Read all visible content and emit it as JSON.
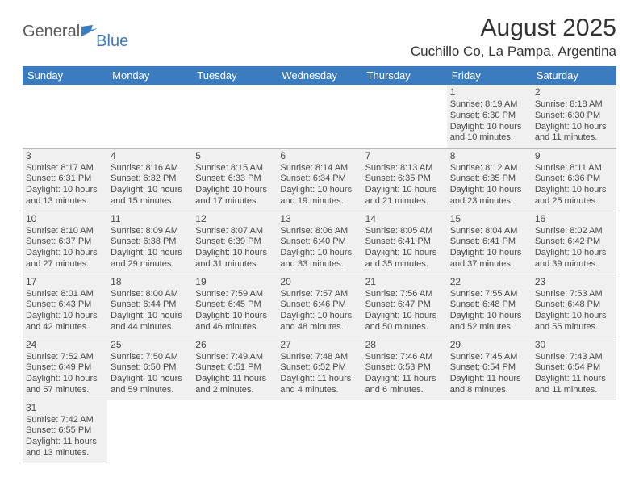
{
  "logo": {
    "general": "General",
    "blue": "Blue"
  },
  "title": "August 2025",
  "location": "Cuchillo Co, La Pampa, Argentina",
  "style": {
    "header_bg": "#3b7bbf",
    "header_fg": "#ffffff",
    "cell_bg": "#f0f0f0",
    "border_color": "#b8b8b8",
    "text_color": "#4a4a4a",
    "title_fontsize": 30,
    "location_fontsize": 17,
    "dayheader_fontsize": 13,
    "cell_fontsize": 11
  },
  "day_headers": [
    "Sunday",
    "Monday",
    "Tuesday",
    "Wednesday",
    "Thursday",
    "Friday",
    "Saturday"
  ],
  "weeks": [
    [
      null,
      null,
      null,
      null,
      null,
      {
        "n": "1",
        "sr": "Sunrise: 8:19 AM",
        "ss": "Sunset: 6:30 PM",
        "d1": "Daylight: 10 hours",
        "d2": "and 10 minutes."
      },
      {
        "n": "2",
        "sr": "Sunrise: 8:18 AM",
        "ss": "Sunset: 6:30 PM",
        "d1": "Daylight: 10 hours",
        "d2": "and 11 minutes."
      }
    ],
    [
      {
        "n": "3",
        "sr": "Sunrise: 8:17 AM",
        "ss": "Sunset: 6:31 PM",
        "d1": "Daylight: 10 hours",
        "d2": "and 13 minutes."
      },
      {
        "n": "4",
        "sr": "Sunrise: 8:16 AM",
        "ss": "Sunset: 6:32 PM",
        "d1": "Daylight: 10 hours",
        "d2": "and 15 minutes."
      },
      {
        "n": "5",
        "sr": "Sunrise: 8:15 AM",
        "ss": "Sunset: 6:33 PM",
        "d1": "Daylight: 10 hours",
        "d2": "and 17 minutes."
      },
      {
        "n": "6",
        "sr": "Sunrise: 8:14 AM",
        "ss": "Sunset: 6:34 PM",
        "d1": "Daylight: 10 hours",
        "d2": "and 19 minutes."
      },
      {
        "n": "7",
        "sr": "Sunrise: 8:13 AM",
        "ss": "Sunset: 6:35 PM",
        "d1": "Daylight: 10 hours",
        "d2": "and 21 minutes."
      },
      {
        "n": "8",
        "sr": "Sunrise: 8:12 AM",
        "ss": "Sunset: 6:35 PM",
        "d1": "Daylight: 10 hours",
        "d2": "and 23 minutes."
      },
      {
        "n": "9",
        "sr": "Sunrise: 8:11 AM",
        "ss": "Sunset: 6:36 PM",
        "d1": "Daylight: 10 hours",
        "d2": "and 25 minutes."
      }
    ],
    [
      {
        "n": "10",
        "sr": "Sunrise: 8:10 AM",
        "ss": "Sunset: 6:37 PM",
        "d1": "Daylight: 10 hours",
        "d2": "and 27 minutes."
      },
      {
        "n": "11",
        "sr": "Sunrise: 8:09 AM",
        "ss": "Sunset: 6:38 PM",
        "d1": "Daylight: 10 hours",
        "d2": "and 29 minutes."
      },
      {
        "n": "12",
        "sr": "Sunrise: 8:07 AM",
        "ss": "Sunset: 6:39 PM",
        "d1": "Daylight: 10 hours",
        "d2": "and 31 minutes."
      },
      {
        "n": "13",
        "sr": "Sunrise: 8:06 AM",
        "ss": "Sunset: 6:40 PM",
        "d1": "Daylight: 10 hours",
        "d2": "and 33 minutes."
      },
      {
        "n": "14",
        "sr": "Sunrise: 8:05 AM",
        "ss": "Sunset: 6:41 PM",
        "d1": "Daylight: 10 hours",
        "d2": "and 35 minutes."
      },
      {
        "n": "15",
        "sr": "Sunrise: 8:04 AM",
        "ss": "Sunset: 6:41 PM",
        "d1": "Daylight: 10 hours",
        "d2": "and 37 minutes."
      },
      {
        "n": "16",
        "sr": "Sunrise: 8:02 AM",
        "ss": "Sunset: 6:42 PM",
        "d1": "Daylight: 10 hours",
        "d2": "and 39 minutes."
      }
    ],
    [
      {
        "n": "17",
        "sr": "Sunrise: 8:01 AM",
        "ss": "Sunset: 6:43 PM",
        "d1": "Daylight: 10 hours",
        "d2": "and 42 minutes."
      },
      {
        "n": "18",
        "sr": "Sunrise: 8:00 AM",
        "ss": "Sunset: 6:44 PM",
        "d1": "Daylight: 10 hours",
        "d2": "and 44 minutes."
      },
      {
        "n": "19",
        "sr": "Sunrise: 7:59 AM",
        "ss": "Sunset: 6:45 PM",
        "d1": "Daylight: 10 hours",
        "d2": "and 46 minutes."
      },
      {
        "n": "20",
        "sr": "Sunrise: 7:57 AM",
        "ss": "Sunset: 6:46 PM",
        "d1": "Daylight: 10 hours",
        "d2": "and 48 minutes."
      },
      {
        "n": "21",
        "sr": "Sunrise: 7:56 AM",
        "ss": "Sunset: 6:47 PM",
        "d1": "Daylight: 10 hours",
        "d2": "and 50 minutes."
      },
      {
        "n": "22",
        "sr": "Sunrise: 7:55 AM",
        "ss": "Sunset: 6:48 PM",
        "d1": "Daylight: 10 hours",
        "d2": "and 52 minutes."
      },
      {
        "n": "23",
        "sr": "Sunrise: 7:53 AM",
        "ss": "Sunset: 6:48 PM",
        "d1": "Daylight: 10 hours",
        "d2": "and 55 minutes."
      }
    ],
    [
      {
        "n": "24",
        "sr": "Sunrise: 7:52 AM",
        "ss": "Sunset: 6:49 PM",
        "d1": "Daylight: 10 hours",
        "d2": "and 57 minutes."
      },
      {
        "n": "25",
        "sr": "Sunrise: 7:50 AM",
        "ss": "Sunset: 6:50 PM",
        "d1": "Daylight: 10 hours",
        "d2": "and 59 minutes."
      },
      {
        "n": "26",
        "sr": "Sunrise: 7:49 AM",
        "ss": "Sunset: 6:51 PM",
        "d1": "Daylight: 11 hours",
        "d2": "and 2 minutes."
      },
      {
        "n": "27",
        "sr": "Sunrise: 7:48 AM",
        "ss": "Sunset: 6:52 PM",
        "d1": "Daylight: 11 hours",
        "d2": "and 4 minutes."
      },
      {
        "n": "28",
        "sr": "Sunrise: 7:46 AM",
        "ss": "Sunset: 6:53 PM",
        "d1": "Daylight: 11 hours",
        "d2": "and 6 minutes."
      },
      {
        "n": "29",
        "sr": "Sunrise: 7:45 AM",
        "ss": "Sunset: 6:54 PM",
        "d1": "Daylight: 11 hours",
        "d2": "and 8 minutes."
      },
      {
        "n": "30",
        "sr": "Sunrise: 7:43 AM",
        "ss": "Sunset: 6:54 PM",
        "d1": "Daylight: 11 hours",
        "d2": "and 11 minutes."
      }
    ],
    [
      {
        "n": "31",
        "sr": "Sunrise: 7:42 AM",
        "ss": "Sunset: 6:55 PM",
        "d1": "Daylight: 11 hours",
        "d2": "and 13 minutes."
      },
      null,
      null,
      null,
      null,
      null,
      null
    ]
  ]
}
